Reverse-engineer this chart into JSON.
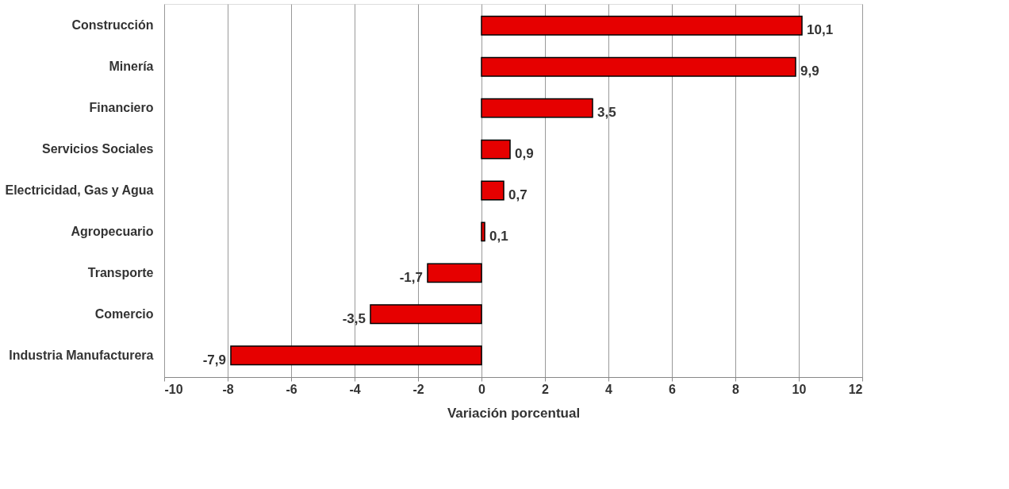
{
  "chart_data": {
    "type": "bar",
    "orientation": "horizontal",
    "xlabel": "Variación porcentual",
    "categories": [
      "Construcción",
      "Minería",
      "Financiero",
      "Servicios Sociales",
      "Electricidad, Gas y Agua",
      "Agropecuario",
      "Transporte",
      "Comercio",
      "Industria Manufacturera"
    ],
    "values": [
      10.1,
      9.9,
      3.5,
      0.9,
      0.7,
      0.1,
      -1.7,
      -3.5,
      -7.9
    ],
    "value_labels": [
      "10,1",
      "9,9",
      "3,5",
      "0,9",
      "0,7",
      "0,1",
      "-1,7",
      "-3,5",
      "-7,9"
    ],
    "color": "#e60000",
    "xlim": [
      -10,
      12
    ],
    "xticks": [
      -10,
      -8,
      -6,
      -4,
      -2,
      0,
      2,
      4,
      6,
      8,
      10,
      12
    ],
    "grid": "x"
  }
}
